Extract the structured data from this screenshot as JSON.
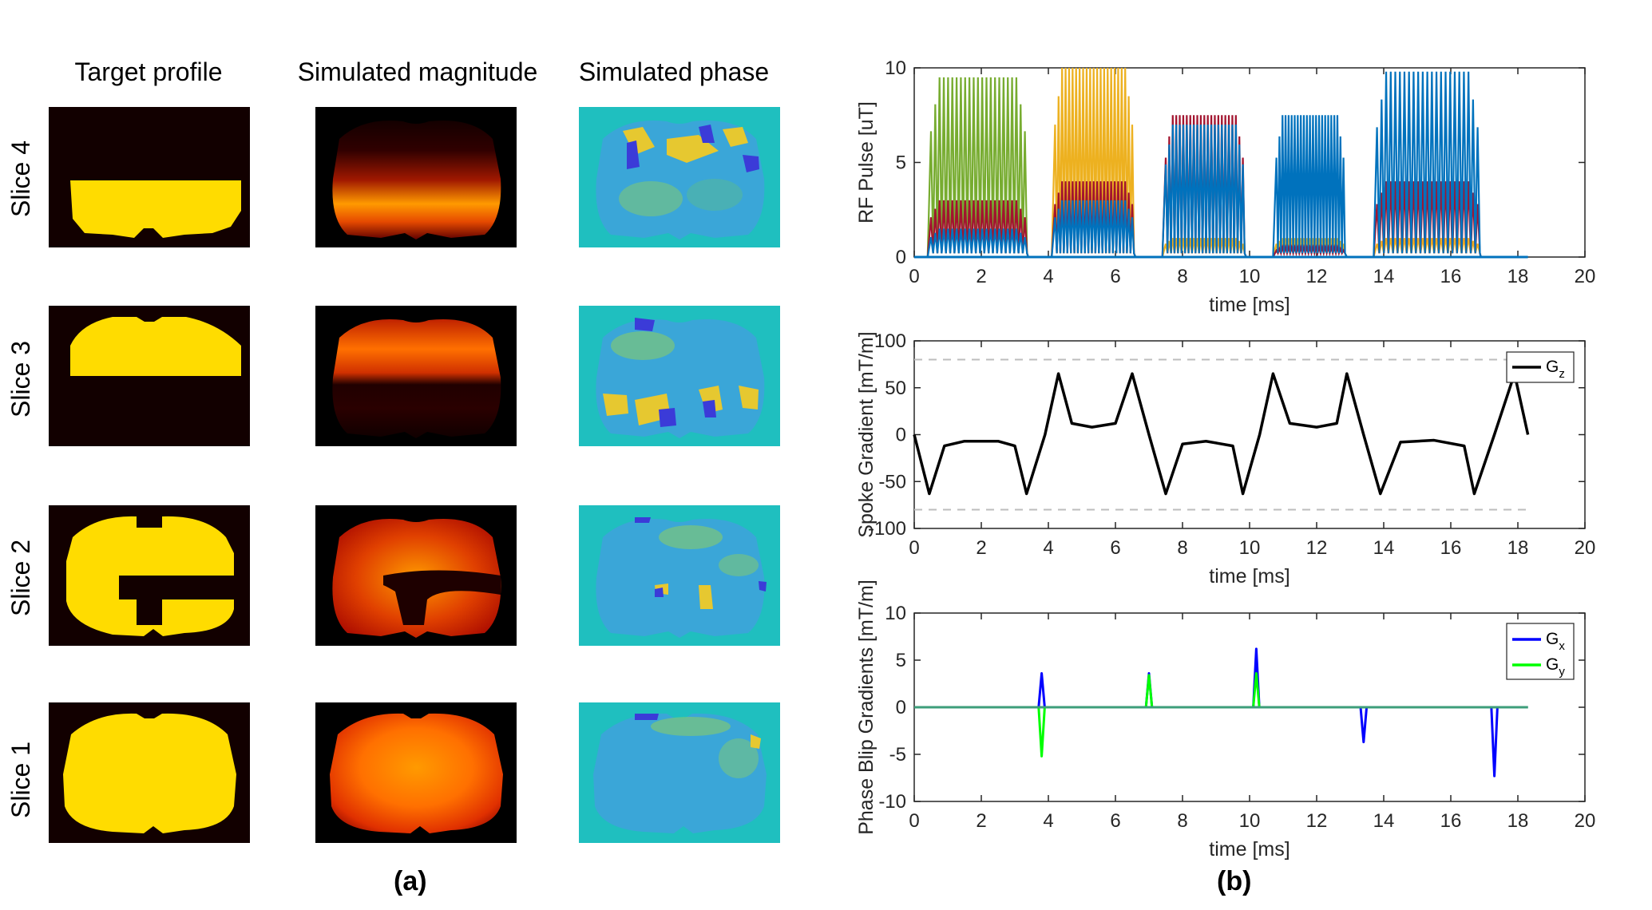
{
  "panel_a": {
    "columns": [
      "Target profile",
      "Simulated magnitude",
      "Simulated phase"
    ],
    "rows": [
      "Slice 4",
      "Slice 3",
      "Slice 2",
      "Slice 1"
    ],
    "caption": "(a)",
    "colors": {
      "target_bg": "#120000",
      "target_fg": "#ffdc00",
      "phase_bg": "#1fbfbf"
    }
  },
  "panel_b": {
    "caption": "(b)",
    "chart_data": [
      {
        "type": "line",
        "id": "rf",
        "title": "",
        "xlabel": "time [ms]",
        "ylabel": "RF Pulse [uT]",
        "xlim": [
          0,
          20
        ],
        "ylim": [
          0,
          10
        ],
        "xticks": [
          0,
          2,
          4,
          6,
          8,
          10,
          12,
          14,
          16,
          18,
          20
        ],
        "yticks": [
          0,
          5,
          10
        ],
        "description_blocks": [
          {
            "start": 0.5,
            "end": 3.3,
            "peak_green": 9.5,
            "peak_red": 3.0,
            "peak_blue": 1.5
          },
          {
            "start": 4.2,
            "end": 6.5,
            "peak_yellow": 10.0,
            "peak_red": 4.0,
            "peak_blue": 3.0
          },
          {
            "start": 7.5,
            "end": 9.8,
            "peak_red": 7.5,
            "peak_blue": 7.0,
            "peak_yellow": 1.0
          },
          {
            "start": 10.8,
            "end": 12.8,
            "peak_blue": 7.5,
            "peak_yellow": 1.0,
            "peak_red": 0.5
          },
          {
            "start": 13.8,
            "end": 16.8,
            "peak_blue": 9.8,
            "peak_red": 4.0,
            "peak_yellow": 1.0
          }
        ],
        "series_colors": [
          "#77ac30",
          "#edb120",
          "#a2142f",
          "#0072bd"
        ]
      },
      {
        "type": "line",
        "id": "gz",
        "xlabel": "time [ms]",
        "ylabel": "Spoke Gradient [mT/m]",
        "xlim": [
          0,
          20
        ],
        "ylim": [
          -100,
          100
        ],
        "xticks": [
          0,
          2,
          4,
          6,
          8,
          10,
          12,
          14,
          16,
          18,
          20
        ],
        "yticks": [
          -100,
          -50,
          0,
          50,
          100
        ],
        "legend": [
          "G",
          "z"
        ],
        "limits": [
          80,
          -80
        ],
        "series": [
          {
            "name": "Gz",
            "x": [
              0,
              0.45,
              0.9,
              1.5,
              2.5,
              3.0,
              3.35,
              3.9,
              4.3,
              4.7,
              5.3,
              6.0,
              6.5,
              7.0,
              7.5,
              8.0,
              8.7,
              9.5,
              9.8,
              10.3,
              10.7,
              11.2,
              12.0,
              12.6,
              12.9,
              13.4,
              13.9,
              14.5,
              15.5,
              16.4,
              16.7,
              17.3,
              17.9,
              18.3
            ],
            "y": [
              0,
              -63,
              -12,
              -7,
              -7,
              -12,
              -63,
              0,
              65,
              12,
              8,
              12,
              65,
              0,
              -63,
              -10,
              -7,
              -12,
              -63,
              0,
              65,
              12,
              8,
              12,
              65,
              0,
              -63,
              -8,
              -6,
              -12,
              -63,
              0,
              65,
              0
            ]
          }
        ]
      },
      {
        "type": "line",
        "id": "gxy",
        "xlabel": "time [ms]",
        "ylabel": "Phase Blip Gradients [mT/m]",
        "xlim": [
          0,
          20
        ],
        "ylim": [
          -10,
          10
        ],
        "xticks": [
          0,
          2,
          4,
          6,
          8,
          10,
          12,
          14,
          16,
          18,
          20
        ],
        "yticks": [
          -10,
          -5,
          0,
          5,
          10
        ],
        "legend": [
          [
            "G",
            "x"
          ],
          [
            "G",
            "y"
          ]
        ],
        "series": [
          {
            "name": "Gx",
            "color": "#0000ff",
            "blips": [
              [
                3.8,
                3.6
              ],
              [
                7.0,
                3.6
              ],
              [
                10.2,
                6.2
              ],
              [
                13.4,
                -3.7
              ],
              [
                17.3,
                -7.3
              ]
            ]
          },
          {
            "name": "Gy",
            "color": "#00ff00",
            "blips": [
              [
                3.8,
                -5.2
              ],
              [
                7.0,
                3.4
              ],
              [
                10.2,
                3.6
              ]
            ]
          }
        ],
        "data_end": 18.3
      }
    ]
  }
}
